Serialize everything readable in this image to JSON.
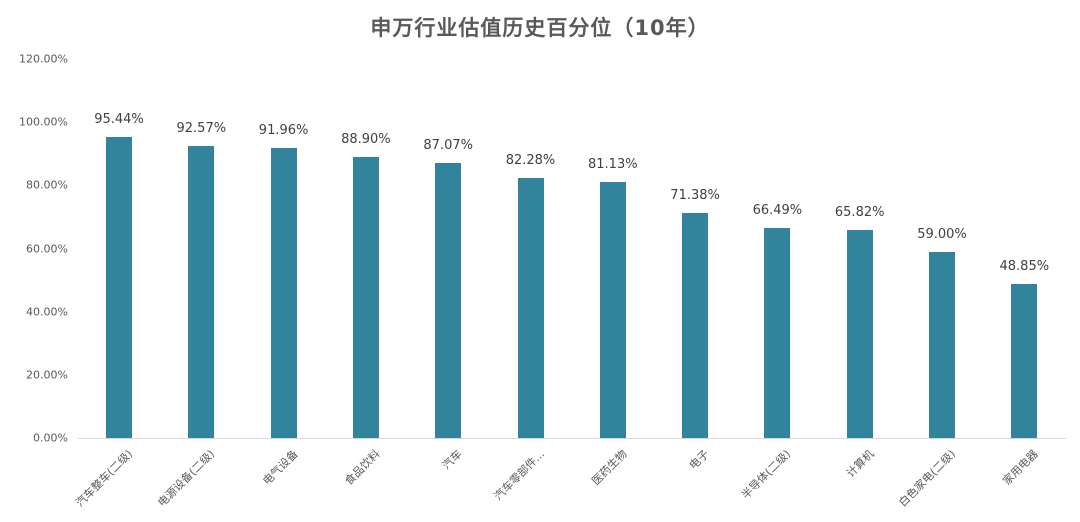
{
  "chart_data": {
    "type": "bar",
    "title": "申万行业估值历史百分位（10年）",
    "xlabel": "",
    "ylabel": "",
    "ylim": [
      0,
      120
    ],
    "y_ticks": [
      "0.00%",
      "20.00%",
      "40.00%",
      "60.00%",
      "80.00%",
      "100.00%",
      "120.00%"
    ],
    "grid": false,
    "legend": null,
    "bar_color": "#31849b",
    "categories": [
      "汽车整车(二级)",
      "电源设备(二级)",
      "电气设备",
      "食品饮料",
      "汽车",
      "汽车零部件...",
      "医药生物",
      "电子",
      "半导体(二级)",
      "计算机",
      "白色家电(二级)",
      "家用电器"
    ],
    "values": [
      95.44,
      92.57,
      91.96,
      88.9,
      87.07,
      82.28,
      81.13,
      71.38,
      66.49,
      65.82,
      59.0,
      48.85
    ],
    "data_labels": [
      "95.44%",
      "92.57%",
      "91.96%",
      "88.90%",
      "87.07%",
      "82.28%",
      "81.13%",
      "71.38%",
      "66.49%",
      "65.82%",
      "59.00%",
      "48.85%"
    ]
  }
}
